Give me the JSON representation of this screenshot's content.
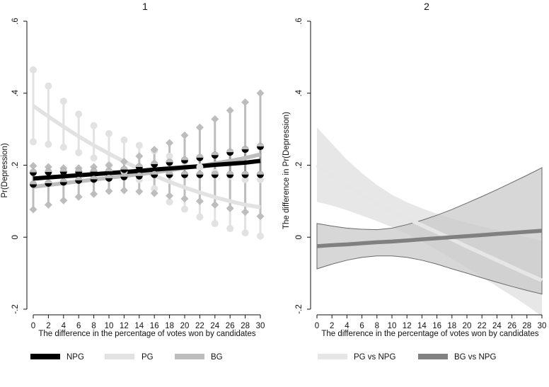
{
  "panels": [
    {
      "title": "1",
      "xlabel": "The difference in the percentage of votes won by candidates",
      "ylabel": "Pr(Depression)",
      "legend": [
        "NPG",
        "PG",
        "BG"
      ]
    },
    {
      "title": "2",
      "xlabel": "The difference in the percentage of votes won by candidates",
      "ylabel": "The difference in Pr(Depression)",
      "legend": [
        "PG vs NPG",
        "BG vs NPG"
      ]
    }
  ],
  "chart_data": [
    {
      "type": "line",
      "title": "1",
      "xlabel": "The difference in the percentage of votes won by candidates",
      "ylabel": "Pr(Depression)",
      "xlim": [
        0,
        30
      ],
      "ylim": [
        -0.2,
        0.6
      ],
      "xticks": [
        0,
        2,
        4,
        6,
        8,
        10,
        12,
        14,
        16,
        18,
        20,
        22,
        24,
        26,
        28,
        30
      ],
      "yticks": [
        -0.2,
        0,
        0.2,
        0.4,
        0.6
      ],
      "ytick_labels": [
        "-.2",
        "0",
        ".2",
        ".4",
        ".6"
      ],
      "grid": false,
      "legend_position": "bottom",
      "x": [
        0,
        2,
        4,
        6,
        8,
        10,
        12,
        14,
        16,
        18,
        20,
        22,
        24,
        26,
        28,
        30
      ],
      "series": [
        {
          "name": "NPG",
          "color": "#000000",
          "marker": "circle",
          "values": [
            0.163,
            0.166,
            0.169,
            0.172,
            0.175,
            0.178,
            0.181,
            0.184,
            0.188,
            0.191,
            0.194,
            0.197,
            0.201,
            0.204,
            0.207,
            0.212
          ],
          "lower": [
            0.147,
            0.15,
            0.153,
            0.158,
            0.161,
            0.164,
            0.168,
            0.17,
            0.174,
            0.174,
            0.174,
            0.174,
            0.174,
            0.174,
            0.174,
            0.174
          ],
          "upper": [
            0.18,
            0.181,
            0.182,
            0.182,
            0.182,
            0.183,
            0.188,
            0.195,
            0.203,
            0.208,
            0.214,
            0.221,
            0.228,
            0.236,
            0.244,
            0.252
          ]
        },
        {
          "name": "PG",
          "color": "#e2e2e2",
          "marker": "circle",
          "values": [
            0.365,
            0.335,
            0.307,
            0.28,
            0.255,
            0.232,
            0.21,
            0.19,
            0.171,
            0.154,
            0.138,
            0.124,
            0.111,
            0.1,
            0.09,
            0.083
          ],
          "lower": [
            0.265,
            0.258,
            0.25,
            0.235,
            0.22,
            0.2,
            0.182,
            0.16,
            0.135,
            0.098,
            0.078,
            0.056,
            0.038,
            0.024,
            0.012,
            0.003
          ],
          "upper": [
            0.465,
            0.42,
            0.378,
            0.342,
            0.31,
            0.288,
            0.27,
            0.255,
            0.24,
            0.225,
            0.21,
            0.195,
            0.18,
            0.17,
            0.16,
            0.16
          ]
        },
        {
          "name": "BG",
          "color": "#bdbdbd",
          "marker": "diamond",
          "values": [
            0.14,
            0.145,
            0.15,
            0.155,
            0.16,
            0.165,
            0.17,
            0.175,
            0.18,
            0.186,
            0.192,
            0.198,
            0.205,
            0.212,
            0.22,
            0.23
          ],
          "lower": [
            0.077,
            0.09,
            0.102,
            0.112,
            0.12,
            0.128,
            0.13,
            0.127,
            0.122,
            0.115,
            0.107,
            0.1,
            0.09,
            0.08,
            0.07,
            0.058
          ],
          "upper": [
            0.198,
            0.195,
            0.192,
            0.192,
            0.195,
            0.2,
            0.21,
            0.225,
            0.243,
            0.262,
            0.283,
            0.305,
            0.328,
            0.352,
            0.375,
            0.4
          ]
        }
      ]
    },
    {
      "type": "area",
      "title": "2",
      "xlabel": "The difference in the percentage of votes won by candidates",
      "ylabel": "The difference in Pr(Depression)",
      "xlim": [
        0,
        30
      ],
      "ylim": [
        -0.2,
        0.6
      ],
      "xticks": [
        0,
        2,
        4,
        6,
        8,
        10,
        12,
        14,
        16,
        18,
        20,
        22,
        24,
        26,
        28,
        30
      ],
      "yticks": [
        -0.2,
        0,
        0.2,
        0.4,
        0.6
      ],
      "ytick_labels": [
        "-.2",
        "0",
        ".2",
        ".4",
        ".6"
      ],
      "grid": false,
      "legend_position": "bottom",
      "x": [
        0,
        2,
        4,
        6,
        8,
        10,
        12,
        14,
        16,
        18,
        20,
        22,
        24,
        26,
        28,
        30
      ],
      "series": [
        {
          "name": "PG vs NPG",
          "color": "#e6e6e6",
          "band_color": "#e3e3e3",
          "values": [
            0.2,
            0.17,
            0.142,
            0.117,
            0.095,
            0.073,
            0.053,
            0.033,
            0.014,
            -0.006,
            -0.026,
            -0.045,
            -0.064,
            -0.083,
            -0.102,
            -0.12
          ],
          "lower": [
            0.098,
            0.088,
            0.075,
            0.06,
            0.045,
            0.028,
            0.01,
            -0.012,
            -0.035,
            -0.06,
            -0.085,
            -0.11,
            -0.137,
            -0.163,
            -0.19,
            -0.22
          ],
          "upper": [
            0.305,
            0.26,
            0.215,
            0.178,
            0.145,
            0.118,
            0.097,
            0.08,
            0.065,
            0.052,
            0.04,
            0.03,
            0.02,
            0.01,
            0.0,
            -0.01
          ]
        },
        {
          "name": "BG vs NPG",
          "color": "#808080",
          "band_color": "#c9c9c9",
          "values": [
            -0.025,
            -0.022,
            -0.02,
            -0.017,
            -0.014,
            -0.012,
            -0.009,
            -0.006,
            -0.003,
            0.0,
            0.003,
            0.006,
            0.009,
            0.012,
            0.015,
            0.018
          ],
          "lower": [
            -0.088,
            -0.075,
            -0.064,
            -0.056,
            -0.052,
            -0.052,
            -0.056,
            -0.064,
            -0.075,
            -0.088,
            -0.1,
            -0.113,
            -0.125,
            -0.137,
            -0.148,
            -0.158
          ],
          "upper": [
            0.038,
            0.031,
            0.025,
            0.022,
            0.021,
            0.025,
            0.035,
            0.047,
            0.061,
            0.077,
            0.095,
            0.113,
            0.132,
            0.152,
            0.172,
            0.193
          ]
        }
      ]
    }
  ]
}
